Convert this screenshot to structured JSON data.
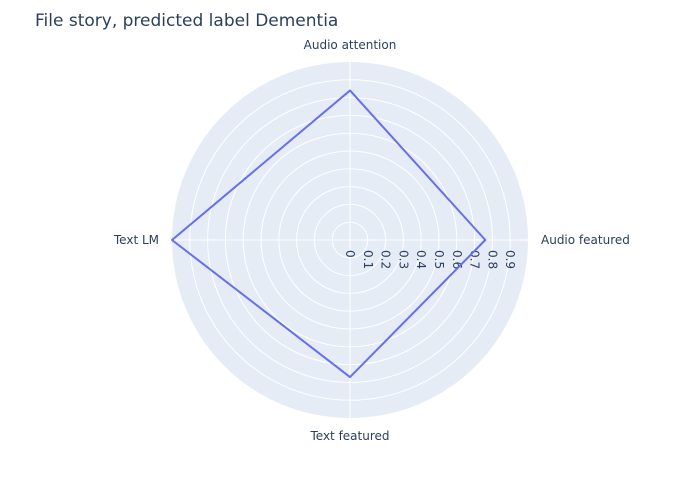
{
  "colors": {
    "plot_background": "#e5ecf6",
    "grid": "#ffffff",
    "text": "#2a3f5f",
    "series_line": "#636efa"
  },
  "chart_data": {
    "type": "radar",
    "title": "File story, predicted label Dementia",
    "axes": [
      "Audio attention",
      "Audio featured",
      "Text featured",
      "Text LM"
    ],
    "radial_ticks": [
      "0",
      "0.1",
      "0.2",
      "0.3",
      "0.4",
      "0.5",
      "0.6",
      "0.7",
      "0.8",
      "0.9"
    ],
    "radial_range": [
      0,
      1.0
    ],
    "grid": true,
    "series": [
      {
        "values": [
          0.84,
          0.76,
          0.77,
          1.0
        ]
      }
    ]
  }
}
